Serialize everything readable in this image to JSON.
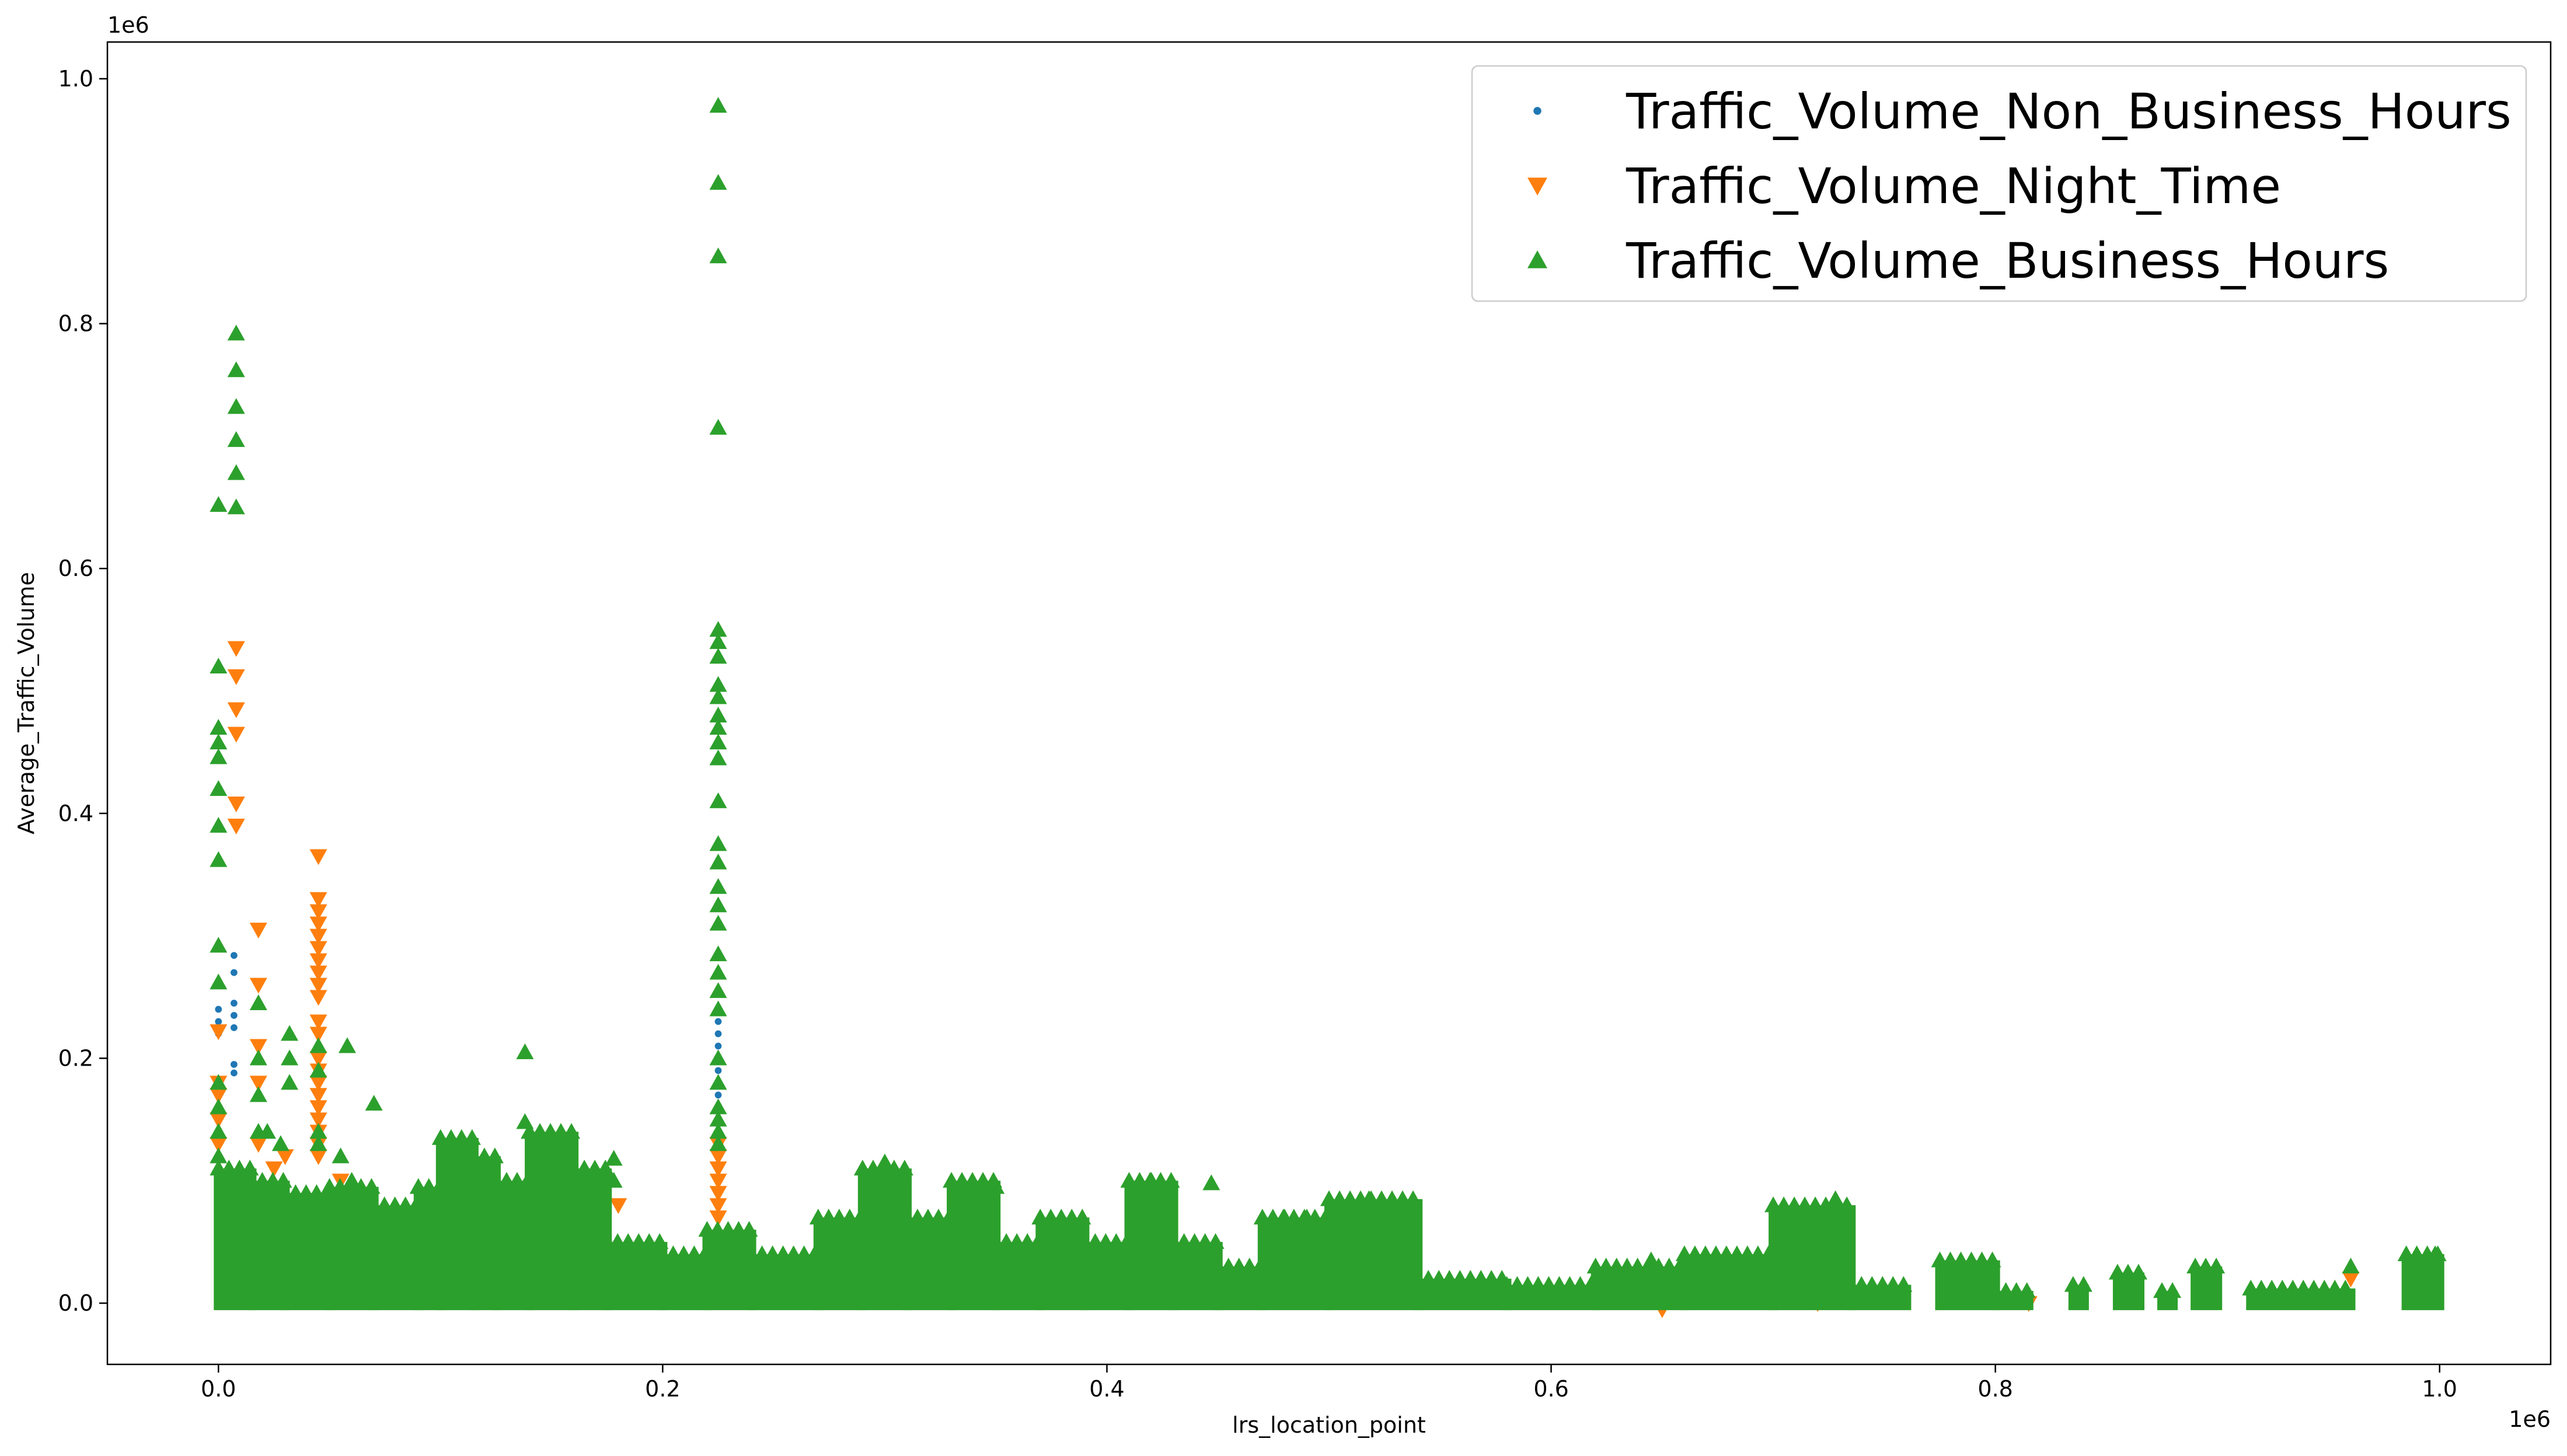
{
  "chart_data": {
    "type": "scatter",
    "xlabel": "lrs_location_point",
    "ylabel": "Average_Traffic_Volume",
    "x_offset_text": "1e6",
    "y_offset_text": "1e6",
    "xlim": [
      -0.05,
      1.05
    ],
    "ylim": [
      -0.05,
      1.03
    ],
    "x_ticks": [
      {
        "value": 0.0,
        "label": "0.0"
      },
      {
        "value": 0.2,
        "label": "0.2"
      },
      {
        "value": 0.4,
        "label": "0.4"
      },
      {
        "value": 0.6,
        "label": "0.6"
      },
      {
        "value": 0.8,
        "label": "0.8"
      },
      {
        "value": 1.0,
        "label": "1.0"
      }
    ],
    "y_ticks": [
      {
        "value": 0.0,
        "label": "0.0"
      },
      {
        "value": 0.2,
        "label": "0.2"
      },
      {
        "value": 0.4,
        "label": "0.4"
      },
      {
        "value": 0.6,
        "label": "0.6"
      },
      {
        "value": 0.8,
        "label": "0.8"
      },
      {
        "value": 1.0,
        "label": "1.0"
      }
    ],
    "grid": false,
    "legend_position": "upper right",
    "series": [
      {
        "name": "Traffic_Volume_Non_Business_Hours",
        "marker": "circle",
        "color": "#1f77b4",
        "points": [
          [
            0.0,
            0.24
          ],
          [
            0.0,
            0.23
          ],
          [
            0.0,
            0.22
          ],
          [
            0.0,
            0.16
          ],
          [
            0.0,
            0.12
          ],
          [
            0.0,
            0.08
          ],
          [
            0.007,
            0.284
          ],
          [
            0.007,
            0.27
          ],
          [
            0.007,
            0.245
          ],
          [
            0.007,
            0.235
          ],
          [
            0.007,
            0.225
          ],
          [
            0.007,
            0.195
          ],
          [
            0.007,
            0.188
          ],
          [
            0.225,
            0.24
          ],
          [
            0.225,
            0.23
          ],
          [
            0.225,
            0.22
          ],
          [
            0.225,
            0.21
          ],
          [
            0.225,
            0.2
          ],
          [
            0.225,
            0.19
          ],
          [
            0.225,
            0.18
          ],
          [
            0.225,
            0.17
          ],
          [
            0.178,
            0.04
          ],
          [
            0.447,
            0.03
          ]
        ]
      },
      {
        "name": "Traffic_Volume_Night_Time",
        "marker": "triangle-down",
        "color": "#ff7f0e",
        "points": [
          [
            0.0,
            0.222
          ],
          [
            0.0,
            0.18
          ],
          [
            0.0,
            0.17
          ],
          [
            0.0,
            0.15
          ],
          [
            0.0,
            0.13
          ],
          [
            0.008,
            0.535
          ],
          [
            0.008,
            0.512
          ],
          [
            0.008,
            0.485
          ],
          [
            0.008,
            0.465
          ],
          [
            0.008,
            0.408
          ],
          [
            0.008,
            0.39
          ],
          [
            0.018,
            0.305
          ],
          [
            0.018,
            0.26
          ],
          [
            0.018,
            0.21
          ],
          [
            0.018,
            0.18
          ],
          [
            0.018,
            0.13
          ],
          [
            0.045,
            0.365
          ],
          [
            0.045,
            0.33
          ],
          [
            0.045,
            0.32
          ],
          [
            0.045,
            0.31
          ],
          [
            0.045,
            0.3
          ],
          [
            0.045,
            0.29
          ],
          [
            0.045,
            0.28
          ],
          [
            0.045,
            0.27
          ],
          [
            0.045,
            0.26
          ],
          [
            0.045,
            0.25
          ],
          [
            0.045,
            0.23
          ],
          [
            0.045,
            0.22
          ],
          [
            0.045,
            0.2
          ],
          [
            0.045,
            0.19
          ],
          [
            0.045,
            0.18
          ],
          [
            0.045,
            0.17
          ],
          [
            0.045,
            0.16
          ],
          [
            0.045,
            0.15
          ],
          [
            0.045,
            0.14
          ],
          [
            0.045,
            0.13
          ],
          [
            0.045,
            0.12
          ],
          [
            0.03,
            0.12
          ],
          [
            0.025,
            0.11
          ],
          [
            0.055,
            0.1
          ],
          [
            0.225,
            0.13
          ],
          [
            0.225,
            0.12
          ],
          [
            0.225,
            0.11
          ],
          [
            0.225,
            0.1
          ],
          [
            0.225,
            0.09
          ],
          [
            0.225,
            0.08
          ],
          [
            0.225,
            0.07
          ],
          [
            0.18,
            0.08
          ],
          [
            0.42,
            0.03
          ],
          [
            0.445,
            0.02
          ],
          [
            0.52,
            0.01
          ],
          [
            0.62,
            0.005
          ],
          [
            0.65,
            -0.005
          ],
          [
            0.72,
            0.0
          ],
          [
            0.78,
            0.005
          ],
          [
            0.815,
            0.0
          ],
          [
            0.96,
            0.02
          ]
        ]
      },
      {
        "name": "Traffic_Volume_Business_Hours",
        "marker": "triangle-up",
        "color": "#2ca02c",
        "points": [
          [
            0.0,
            0.652
          ],
          [
            0.0,
            0.52
          ],
          [
            0.0,
            0.47
          ],
          [
            0.0,
            0.458
          ],
          [
            0.0,
            0.446
          ],
          [
            0.0,
            0.42
          ],
          [
            0.0,
            0.39
          ],
          [
            0.0,
            0.362
          ],
          [
            0.0,
            0.292
          ],
          [
            0.0,
            0.262
          ],
          [
            0.0,
            0.18
          ],
          [
            0.0,
            0.16
          ],
          [
            0.0,
            0.14
          ],
          [
            0.0,
            0.12
          ],
          [
            0.008,
            0.792
          ],
          [
            0.008,
            0.762
          ],
          [
            0.008,
            0.732
          ],
          [
            0.008,
            0.705
          ],
          [
            0.008,
            0.678
          ],
          [
            0.008,
            0.65
          ],
          [
            0.018,
            0.245
          ],
          [
            0.018,
            0.2
          ],
          [
            0.018,
            0.17
          ],
          [
            0.018,
            0.14
          ],
          [
            0.022,
            0.14
          ],
          [
            0.028,
            0.13
          ],
          [
            0.032,
            0.22
          ],
          [
            0.032,
            0.2
          ],
          [
            0.032,
            0.18
          ],
          [
            0.045,
            0.21
          ],
          [
            0.045,
            0.19
          ],
          [
            0.045,
            0.14
          ],
          [
            0.045,
            0.13
          ],
          [
            0.058,
            0.21
          ],
          [
            0.055,
            0.12
          ],
          [
            0.06,
            0.1
          ],
          [
            0.07,
            0.163
          ],
          [
            0.138,
            0.205
          ],
          [
            0.138,
            0.148
          ],
          [
            0.178,
            0.118
          ],
          [
            0.178,
            0.1
          ],
          [
            0.225,
            0.978
          ],
          [
            0.225,
            0.915
          ],
          [
            0.225,
            0.855
          ],
          [
            0.225,
            0.715
          ],
          [
            0.225,
            0.55
          ],
          [
            0.225,
            0.54
          ],
          [
            0.225,
            0.528
          ],
          [
            0.225,
            0.505
          ],
          [
            0.225,
            0.495
          ],
          [
            0.225,
            0.48
          ],
          [
            0.225,
            0.47
          ],
          [
            0.225,
            0.458
          ],
          [
            0.225,
            0.445
          ],
          [
            0.225,
            0.41
          ],
          [
            0.225,
            0.375
          ],
          [
            0.225,
            0.36
          ],
          [
            0.225,
            0.34
          ],
          [
            0.225,
            0.325
          ],
          [
            0.225,
            0.31
          ],
          [
            0.225,
            0.285
          ],
          [
            0.225,
            0.27
          ],
          [
            0.225,
            0.255
          ],
          [
            0.225,
            0.24
          ],
          [
            0.225,
            0.2
          ],
          [
            0.225,
            0.18
          ],
          [
            0.225,
            0.16
          ],
          [
            0.225,
            0.15
          ],
          [
            0.225,
            0.14
          ],
          [
            0.225,
            0.13
          ],
          [
            0.3,
            0.115
          ],
          [
            0.335,
            0.098
          ],
          [
            0.35,
            0.095
          ],
          [
            0.42,
            0.1
          ],
          [
            0.447,
            0.098
          ],
          [
            0.48,
            0.07
          ],
          [
            0.49,
            0.07
          ],
          [
            0.518,
            0.085
          ],
          [
            0.53,
            0.065
          ],
          [
            0.728,
            0.085
          ],
          [
            0.645,
            0.035
          ],
          [
            0.96,
            0.03
          ],
          [
            0.998,
            0.04
          ]
        ],
        "clusters": [
          {
            "x": [
              0.0,
              0.015
            ],
            "top": 0.11
          },
          {
            "x": [
              0.015,
              0.03
            ],
            "top": 0.1
          },
          {
            "x": [
              0.03,
              0.05
            ],
            "top": 0.09
          },
          {
            "x": [
              0.05,
              0.07
            ],
            "top": 0.095
          },
          {
            "x": [
              0.07,
              0.09
            ],
            "top": 0.08
          },
          {
            "x": [
              0.09,
              0.1
            ],
            "top": 0.095
          },
          {
            "x": [
              0.1,
              0.115
            ],
            "top": 0.135
          },
          {
            "x": [
              0.115,
              0.125
            ],
            "top": 0.12
          },
          {
            "x": [
              0.125,
              0.14
            ],
            "top": 0.1
          },
          {
            "x": [
              0.14,
              0.16
            ],
            "top": 0.14
          },
          {
            "x": [
              0.16,
              0.175
            ],
            "top": 0.11
          },
          {
            "x": [
              0.175,
              0.2
            ],
            "top": 0.05
          },
          {
            "x": [
              0.2,
              0.22
            ],
            "top": 0.04
          },
          {
            "x": [
              0.22,
              0.24
            ],
            "top": 0.06
          },
          {
            "x": [
              0.24,
              0.27
            ],
            "top": 0.04
          },
          {
            "x": [
              0.27,
              0.29
            ],
            "top": 0.07
          },
          {
            "x": [
              0.29,
              0.31
            ],
            "top": 0.11
          },
          {
            "x": [
              0.31,
              0.33
            ],
            "top": 0.07
          },
          {
            "x": [
              0.33,
              0.35
            ],
            "top": 0.1
          },
          {
            "x": [
              0.35,
              0.37
            ],
            "top": 0.05
          },
          {
            "x": [
              0.37,
              0.39
            ],
            "top": 0.07
          },
          {
            "x": [
              0.39,
              0.41
            ],
            "top": 0.05
          },
          {
            "x": [
              0.41,
              0.43
            ],
            "top": 0.1
          },
          {
            "x": [
              0.43,
              0.45
            ],
            "top": 0.05
          },
          {
            "x": [
              0.45,
              0.47
            ],
            "top": 0.03
          },
          {
            "x": [
              0.47,
              0.5
            ],
            "top": 0.07
          },
          {
            "x": [
              0.5,
              0.54
            ],
            "top": 0.085
          },
          {
            "x": [
              0.54,
              0.58
            ],
            "top": 0.02
          },
          {
            "x": [
              0.58,
              0.62
            ],
            "top": 0.015
          },
          {
            "x": [
              0.62,
              0.66
            ],
            "top": 0.03
          },
          {
            "x": [
              0.66,
              0.7
            ],
            "top": 0.04
          },
          {
            "x": [
              0.7,
              0.735
            ],
            "top": 0.08
          },
          {
            "x": [
              0.735,
              0.76
            ],
            "top": 0.015
          },
          {
            "x": [
              0.775,
              0.8
            ],
            "top": 0.035
          },
          {
            "x": [
              0.8,
              0.815
            ],
            "top": 0.01
          },
          {
            "x": [
              0.835,
              0.84
            ],
            "top": 0.015
          },
          {
            "x": [
              0.855,
              0.865
            ],
            "top": 0.025
          },
          {
            "x": [
              0.875,
              0.88
            ],
            "top": 0.01
          },
          {
            "x": [
              0.89,
              0.9
            ],
            "top": 0.03
          },
          {
            "x": [
              0.915,
              0.96
            ],
            "top": 0.012
          },
          {
            "x": [
              0.985,
              1.0
            ],
            "top": 0.04
          }
        ]
      }
    ]
  }
}
